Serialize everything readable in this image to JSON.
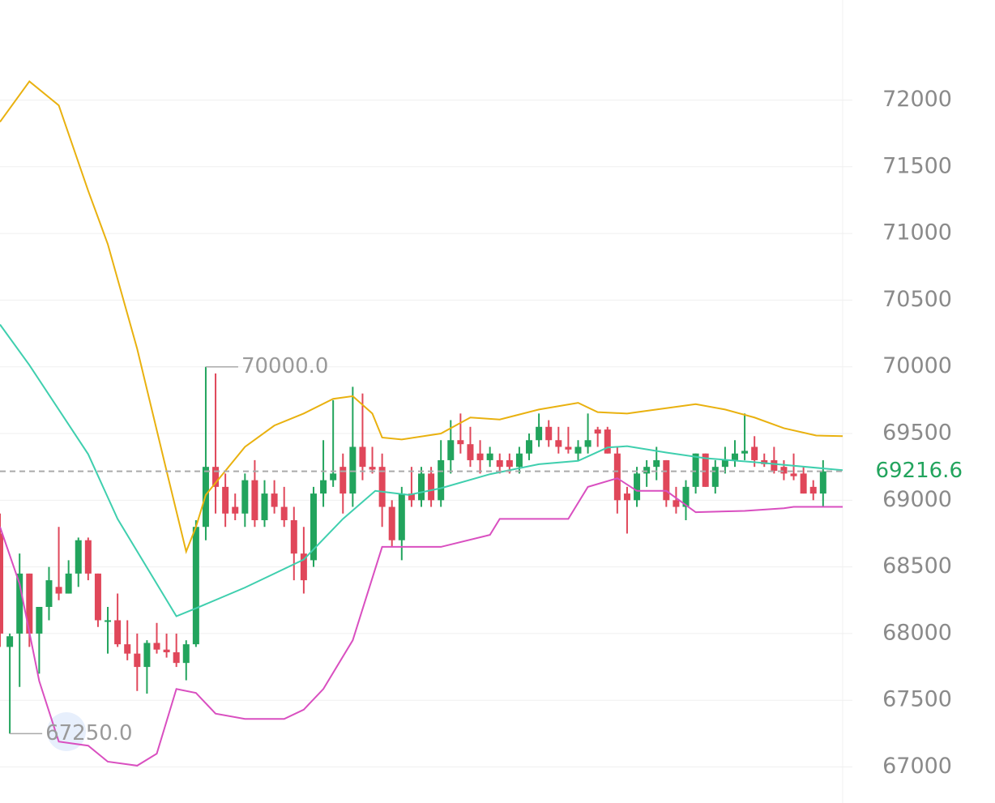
{
  "chart_data": {
    "type": "candlestick",
    "up_color": "#22a45d",
    "down_color": "#e0475a",
    "grid": true,
    "ylim": [
      66730,
      72750
    ],
    "xlim": [
      0,
      86
    ],
    "yticks": [
      67000,
      67500,
      68000,
      68500,
      69000,
      69500,
      70000,
      70500,
      71000,
      71500,
      72000
    ],
    "open": [
      68750,
      67900,
      68000,
      68450,
      68000,
      68200,
      68350,
      68300,
      68450,
      68700,
      68450,
      68100,
      68100,
      67920,
      67850,
      67750,
      67930,
      67880,
      67860,
      67780,
      67920,
      68800,
      69250,
      69100,
      68950,
      68900,
      69150,
      68850,
      69050,
      68950,
      68850,
      68600,
      68550,
      69050,
      69150,
      69250,
      69050,
      69400,
      69250,
      69250,
      68950,
      68700,
      69050,
      69000,
      69200,
      69000,
      69300,
      69450,
      69420,
      69350,
      69300,
      69300,
      69300,
      69250,
      69350,
      69450,
      69550,
      69450,
      69400,
      69350,
      69400,
      69530,
      69530,
      69350,
      69050,
      69000,
      69200,
      69250,
      69300,
      69000,
      68950,
      69100,
      69350,
      69100,
      69250,
      69300,
      69350,
      69400,
      69300,
      69300,
      69250,
      69200,
      69200,
      69100,
      69050
    ],
    "high": [
      68900,
      68000,
      68600,
      68450,
      68200,
      68500,
      68800,
      68550,
      68720,
      68720,
      68450,
      68200,
      68300,
      68100,
      68000,
      67950,
      68080,
      68000,
      68000,
      67950,
      68850,
      70000,
      69950,
      69200,
      69050,
      69200,
      69300,
      69150,
      69150,
      69100,
      68950,
      68800,
      69100,
      69450,
      69750,
      69350,
      69850,
      69800,
      69400,
      69350,
      69000,
      69100,
      69250,
      69250,
      69250,
      69450,
      69600,
      69650,
      69550,
      69450,
      69400,
      69350,
      69350,
      69400,
      69500,
      69650,
      69600,
      69550,
      69550,
      69450,
      69650,
      69550,
      69550,
      69400,
      69100,
      69250,
      69300,
      69400,
      69300,
      69100,
      69150,
      69350,
      69350,
      69300,
      69400,
      69450,
      69650,
      69480,
      69350,
      69400,
      69300,
      69350,
      69250,
      69150,
      69300
    ],
    "low": [
      67900,
      67250,
      67600,
      67900,
      67700,
      68100,
      68250,
      68300,
      68350,
      68400,
      68050,
      67850,
      67900,
      67800,
      67570,
      67550,
      67850,
      67820,
      67750,
      67650,
      67900,
      68700,
      68900,
      68800,
      68850,
      68800,
      68800,
      68800,
      68900,
      68800,
      68400,
      68300,
      68500,
      68950,
      69100,
      68900,
      68950,
      69150,
      69200,
      68800,
      68650,
      68550,
      68950,
      68950,
      68950,
      68950,
      69200,
      69350,
      69250,
      69200,
      69250,
      69200,
      69200,
      69200,
      69300,
      69400,
      69400,
      69350,
      69350,
      69300,
      69350,
      69400,
      69350,
      68900,
      68750,
      68950,
      69100,
      69150,
      68950,
      68900,
      68850,
      69050,
      69100,
      69050,
      69200,
      69250,
      69300,
      69250,
      69250,
      69200,
      69150,
      69150,
      69050,
      69000,
      68950
    ],
    "close": [
      68000,
      67980,
      68450,
      68000,
      68200,
      68400,
      68300,
      68450,
      68700,
      68450,
      68100,
      68100,
      67920,
      67850,
      67750,
      67930,
      67880,
      67860,
      67780,
      67920,
      68800,
      69250,
      69100,
      68900,
      68900,
      69150,
      68850,
      69050,
      68950,
      68850,
      68600,
      68400,
      69050,
      69150,
      69200,
      69050,
      69400,
      69250,
      69230,
      68950,
      68700,
      69050,
      69000,
      69200,
      69000,
      69300,
      69450,
      69420,
      69300,
      69300,
      69350,
      69250,
      69250,
      69350,
      69450,
      69550,
      69450,
      69400,
      69380,
      69400,
      69450,
      69500,
      69350,
      69000,
      69000,
      69200,
      69250,
      69300,
      69000,
      68950,
      69100,
      69350,
      69100,
      69250,
      69300,
      69350,
      69370,
      69300,
      69270,
      69220,
      69200,
      69180,
      69050,
      69050,
      69216.6
    ],
    "overlays": [
      {
        "color": "#e9b10f",
        "x": [
          0,
          3,
          6,
          9,
          11,
          14,
          17,
          19,
          20,
          21,
          23,
          25,
          28,
          31,
          34,
          36,
          38,
          39,
          41,
          45,
          48,
          51,
          55,
          59,
          61,
          64,
          67,
          71,
          74,
          77,
          80,
          83.3,
          86
        ],
        "values": [
          71836,
          72140,
          71960,
          71320,
          70920,
          70135,
          69220,
          68615,
          68800,
          69040,
          69220,
          69400,
          69560,
          69650,
          69760,
          69780,
          69650,
          69470,
          69455,
          69500,
          69620,
          69605,
          69680,
          69730,
          69660,
          69650,
          69680,
          69720,
          69680,
          69620,
          69540,
          69485,
          69480
        ]
      },
      {
        "color": "#3fcfae",
        "x": [
          0,
          3,
          9,
          12,
          18,
          20,
          25,
          28,
          31,
          35,
          38.3,
          41.7,
          45,
          50,
          55,
          59,
          62,
          64,
          68,
          72,
          77,
          86
        ],
        "values": [
          70317,
          70013,
          69345,
          68860,
          68130,
          68190,
          68345,
          68450,
          68555,
          68860,
          69070,
          69040,
          69090,
          69195,
          69270,
          69295,
          69395,
          69405,
          69357,
          69315,
          69285,
          69225
        ]
      },
      {
        "color": "#d94fc0",
        "x": [
          0,
          2,
          4,
          6,
          9,
          11,
          14,
          16,
          18,
          20,
          22,
          25,
          29,
          31,
          33,
          36,
          39,
          45,
          50,
          51,
          58,
          60,
          63,
          65,
          68,
          71,
          76,
          80,
          81,
          86
        ],
        "values": [
          68800,
          68373,
          67645,
          67190,
          67160,
          67040,
          67010,
          67100,
          67585,
          67555,
          67400,
          67360,
          67360,
          67430,
          67585,
          67950,
          68650,
          68650,
          68740,
          68860,
          68860,
          69100,
          69165,
          69070,
          69070,
          68910,
          68920,
          68940,
          68950,
          68950
        ]
      }
    ],
    "annotations": [
      {
        "value": 70000,
        "label": "70000.0"
      },
      {
        "value": 67250,
        "label": "67250.0"
      }
    ],
    "last_price": 69216.6
  }
}
